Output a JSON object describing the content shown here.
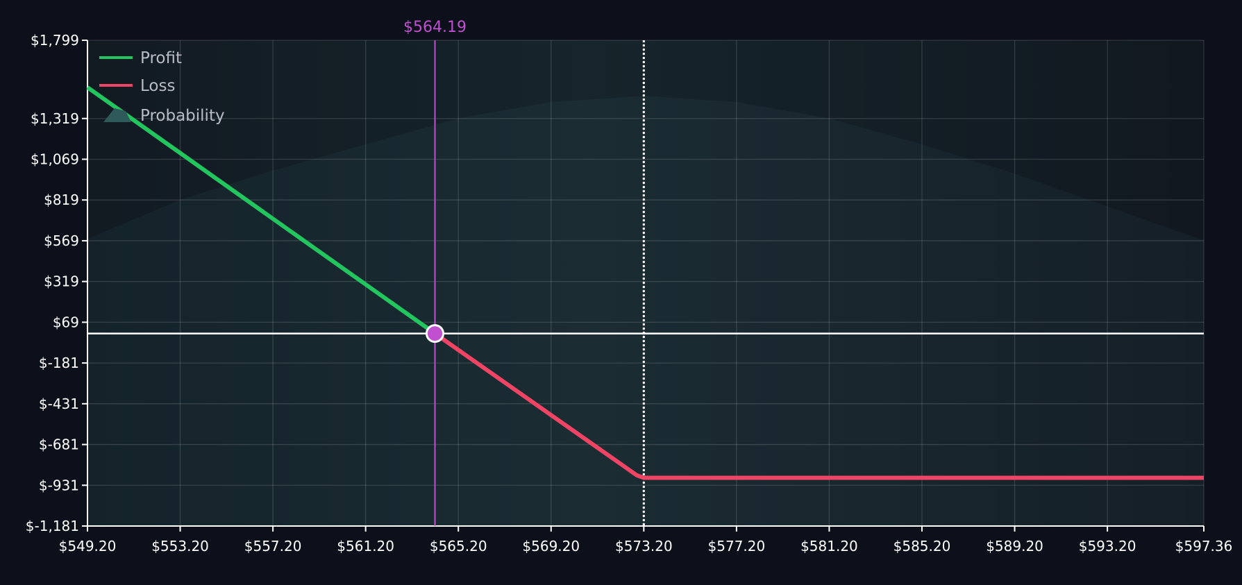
{
  "chart_data": {
    "type": "line",
    "title": "",
    "xlabel": "",
    "ylabel": "",
    "xlim": [
      549.2,
      597.36
    ],
    "ylim": [
      -1181,
      1799
    ],
    "x_tick_values": [
      549.2,
      553.2,
      557.2,
      561.2,
      565.2,
      569.2,
      573.2,
      577.2,
      581.2,
      585.2,
      589.2,
      593.2,
      597.36
    ],
    "x_tick_labels": [
      "$549.20",
      "$553.20",
      "$557.20",
      "$561.20",
      "$565.20",
      "$569.20",
      "$573.20",
      "$577.20",
      "$581.20",
      "$585.20",
      "$589.20",
      "$593.20",
      "$597.36"
    ],
    "y_tick_values": [
      1799,
      1319,
      1069,
      819,
      569,
      319,
      69,
      -181,
      -431,
      -681,
      -931,
      -1181
    ],
    "y_tick_labels": [
      "$1,799",
      "$1,319",
      "$1,069",
      "$819",
      "$569",
      "$319",
      "$69",
      "$-181",
      "$-431",
      "$-681",
      "$-931",
      "$-1,181"
    ],
    "grid": true,
    "legend_position": "top-left",
    "legend": [
      {
        "label": "Profit",
        "kind": "line",
        "color": "#22c55e"
      },
      {
        "label": "Loss",
        "kind": "line",
        "color": "#ef4565"
      },
      {
        "label": "Probability",
        "kind": "area",
        "color": "#2f5a5a"
      }
    ],
    "series": [
      {
        "name": "Profit",
        "color": "#22c55e",
        "x": [
          549.2,
          564.19
        ],
        "y": [
          1510,
          0
        ]
      },
      {
        "name": "Loss",
        "color": "#ef4565",
        "x": [
          564.19,
          572.9,
          573.2,
          597.36
        ],
        "y": [
          0,
          -870,
          -885,
          -885
        ]
      },
      {
        "name": "Probability",
        "type": "area",
        "color": "#1e3a3f",
        "x": [
          549.2,
          553.2,
          557.2,
          561.2,
          565.2,
          569.2,
          573.2,
          577.2,
          581.2,
          585.2,
          589.2,
          593.2,
          597.36
        ],
        "y": [
          580,
          820,
          1000,
          1160,
          1320,
          1420,
          1457,
          1420,
          1320,
          1160,
          980,
          780,
          570
        ]
      }
    ],
    "zero_line": {
      "y": 0,
      "color": "#ffffff"
    },
    "strike_line": {
      "x": 573.2,
      "style": "dotted",
      "color": "#ffffff"
    },
    "breakeven": {
      "x": 564.19,
      "y": 0,
      "label": "$564.19",
      "color": "#c050d0"
    }
  }
}
